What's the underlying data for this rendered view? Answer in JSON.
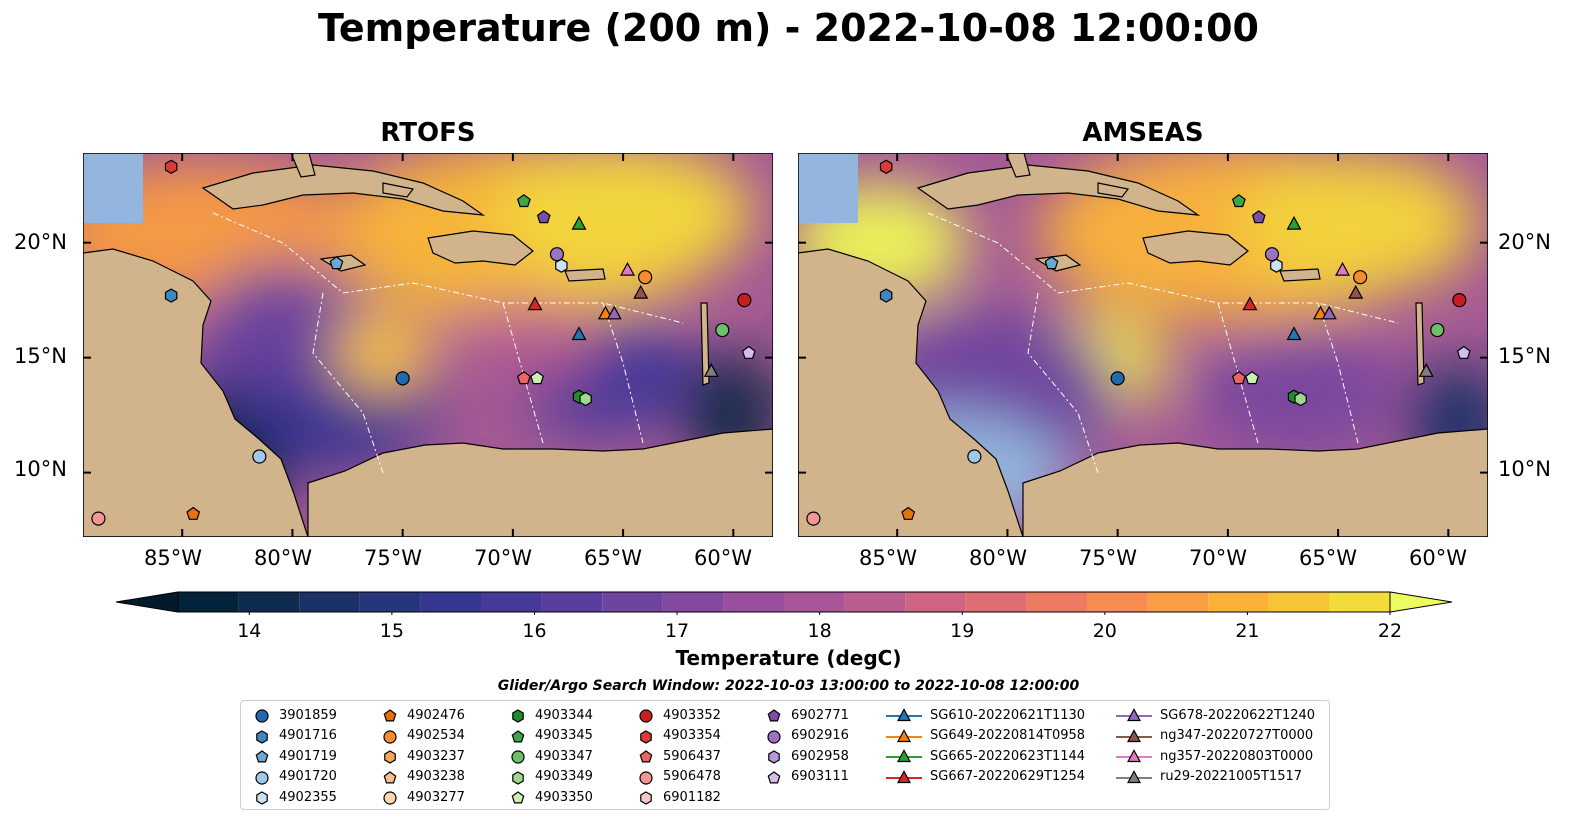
{
  "title": "Temperature (200 m) - 2022-10-08 12:00:00",
  "panels": [
    {
      "title": "RTOFS"
    },
    {
      "title": "AMSEAS"
    }
  ],
  "latitude_ticks": [
    "20°N",
    "15°N",
    "10°N"
  ],
  "longitude_ticks": [
    "85°W",
    "80°W",
    "75°W",
    "70°W",
    "65°W",
    "60°W"
  ],
  "map_extent": {
    "lon": [
      -89.5,
      -58.2
    ],
    "lat": [
      7.2,
      23.9
    ]
  },
  "colorbar": {
    "label": "Temperature (degC)",
    "min": 13.5,
    "max": 22.0,
    "step": 0.5,
    "ticks": [
      "14",
      "15",
      "16",
      "17",
      "18",
      "19",
      "20",
      "21",
      "22"
    ],
    "colors": [
      "#03233a",
      "#0f2c4f",
      "#1c3167",
      "#26357c",
      "#35368f",
      "#45399a",
      "#5a3e9d",
      "#6e449f",
      "#83499e",
      "#984f9d",
      "#a85698",
      "#bc5d8f",
      "#d06483",
      "#e06d74",
      "#ee7a63",
      "#f78b51",
      "#fa9d44",
      "#fbb03c",
      "#f6c537",
      "#f2dc3b",
      "#e3f55a"
    ],
    "under_color": "#031a2b",
    "over_color": "#ecfb5f"
  },
  "search_window": "Glider/Argo Search Window: 2022-10-03 13:00:00 to 2022-10-08 12:00:00",
  "legend": {
    "columns": [
      [
        {
          "label": "3901859",
          "marker": "circle",
          "color": "#1f6bb0"
        },
        {
          "label": "4901716",
          "marker": "hexagon",
          "color": "#3d87c3"
        },
        {
          "label": "4901719",
          "marker": "pentagon",
          "color": "#6aa8d8"
        },
        {
          "label": "4901720",
          "marker": "circle",
          "color": "#9ec9e8"
        },
        {
          "label": "4902355",
          "marker": "hexagon",
          "color": "#c9e3f5"
        }
      ],
      [
        {
          "label": "4902476",
          "marker": "pentagon",
          "color": "#e6700a"
        },
        {
          "label": "4902534",
          "marker": "circle",
          "color": "#f28e30"
        },
        {
          "label": "4903237",
          "marker": "hexagon",
          "color": "#f8a65a"
        },
        {
          "label": "4903238",
          "marker": "pentagon",
          "color": "#fbc08b"
        },
        {
          "label": "4903277",
          "marker": "circle",
          "color": "#fdd8b5"
        }
      ],
      [
        {
          "label": "4903344",
          "marker": "hexagon",
          "color": "#238b2d"
        },
        {
          "label": "4903345",
          "marker": "pentagon",
          "color": "#3fa548"
        },
        {
          "label": "4903347",
          "marker": "circle",
          "color": "#6cc06a"
        },
        {
          "label": "4903349",
          "marker": "hexagon",
          "color": "#9fd98f"
        },
        {
          "label": "4903350",
          "marker": "pentagon",
          "color": "#c9efb8"
        }
      ],
      [
        {
          "label": "4903352",
          "marker": "circle",
          "color": "#c81e1e"
        },
        {
          "label": "4903354",
          "marker": "hexagon",
          "color": "#dd3b3b"
        },
        {
          "label": "5906437",
          "marker": "pentagon",
          "color": "#ed6464"
        },
        {
          "label": "5906478",
          "marker": "circle",
          "color": "#f59595"
        },
        {
          "label": "6901182",
          "marker": "hexagon",
          "color": "#fbc5c5"
        }
      ],
      [
        {
          "label": "6902771",
          "marker": "pentagon",
          "color": "#7b4fa8"
        },
        {
          "label": "6902916",
          "marker": "circle",
          "color": "#9b73c4"
        },
        {
          "label": "6902958",
          "marker": "hexagon",
          "color": "#b897da"
        },
        {
          "label": "6903111",
          "marker": "pentagon",
          "color": "#d5bdee"
        }
      ],
      [
        {
          "label": "SG610-20220621T1130",
          "marker": "triangle",
          "color": "#1f77b4",
          "line": true
        },
        {
          "label": "SG649-20220814T0958",
          "marker": "triangle",
          "color": "#ff7f0e",
          "line": true
        },
        {
          "label": "SG665-20220623T1144",
          "marker": "triangle",
          "color": "#2ca02c",
          "line": true
        },
        {
          "label": "SG667-20220629T1254",
          "marker": "triangle",
          "color": "#d62728",
          "line": true
        }
      ],
      [
        {
          "label": "SG678-20220622T1240",
          "marker": "triangle",
          "color": "#9467bd",
          "line": true
        },
        {
          "label": "ng347-20220727T0000",
          "marker": "triangle",
          "color": "#8c564b",
          "line": true
        },
        {
          "label": "ng357-20220803T0000",
          "marker": "triangle",
          "color": "#e377c2",
          "line": true
        },
        {
          "label": "ru29-20221005T1517",
          "marker": "triangle",
          "color": "#7f7f7f",
          "line": true
        }
      ]
    ]
  },
  "platforms": [
    {
      "label": "3901859",
      "lon": -75.0,
      "lat": 14.1
    },
    {
      "label": "4901716",
      "lon": -85.5,
      "lat": 17.7
    },
    {
      "label": "4901719",
      "lon": -78.0,
      "lat": 19.1
    },
    {
      "label": "4901720",
      "lon": -81.5,
      "lat": 10.7
    },
    {
      "label": "4902355",
      "lon": -67.8,
      "lat": 19.0
    },
    {
      "label": "4902476",
      "lon": -84.5,
      "lat": 8.2
    },
    {
      "label": "4902534",
      "lon": -64.0,
      "lat": 18.5
    },
    {
      "label": "4903344",
      "lon": -67.0,
      "lat": 13.3
    },
    {
      "label": "4903345",
      "lon": -69.5,
      "lat": 21.8
    },
    {
      "label": "4903347",
      "lon": -60.5,
      "lat": 16.2
    },
    {
      "label": "4903349",
      "lon": -66.7,
      "lat": 13.2
    },
    {
      "label": "4903350",
      "lon": -68.9,
      "lat": 14.1
    },
    {
      "label": "4903352",
      "lon": -59.5,
      "lat": 17.5
    },
    {
      "label": "4903354",
      "lon": -85.5,
      "lat": 23.3
    },
    {
      "label": "5906437",
      "lon": -69.5,
      "lat": 14.1
    },
    {
      "label": "5906478",
      "lon": -88.8,
      "lat": 8.0
    },
    {
      "label": "6902771",
      "lon": -68.6,
      "lat": 21.1
    },
    {
      "label": "6902916",
      "lon": -68.0,
      "lat": 19.5
    },
    {
      "label": "6903111",
      "lon": -59.3,
      "lat": 15.2
    },
    {
      "label": "SG610-20220621T1130",
      "lon": -67.0,
      "lat": 16.0
    },
    {
      "label": "SG649-20220814T0958",
      "lon": -65.8,
      "lat": 16.9
    },
    {
      "label": "SG665-20220623T1144",
      "lon": -67.0,
      "lat": 20.8
    },
    {
      "label": "SG667-20220629T1254",
      "lon": -69.0,
      "lat": 17.3
    },
    {
      "label": "SG678-20220622T1240",
      "lon": -65.4,
      "lat": 16.9
    },
    {
      "label": "ng347-20220727T0000",
      "lon": -64.2,
      "lat": 17.8
    },
    {
      "label": "ng357-20220803T0000",
      "lon": -64.8,
      "lat": 18.8
    },
    {
      "label": "ru29-20221005T1517",
      "lon": -61.0,
      "lat": 14.4
    }
  ]
}
